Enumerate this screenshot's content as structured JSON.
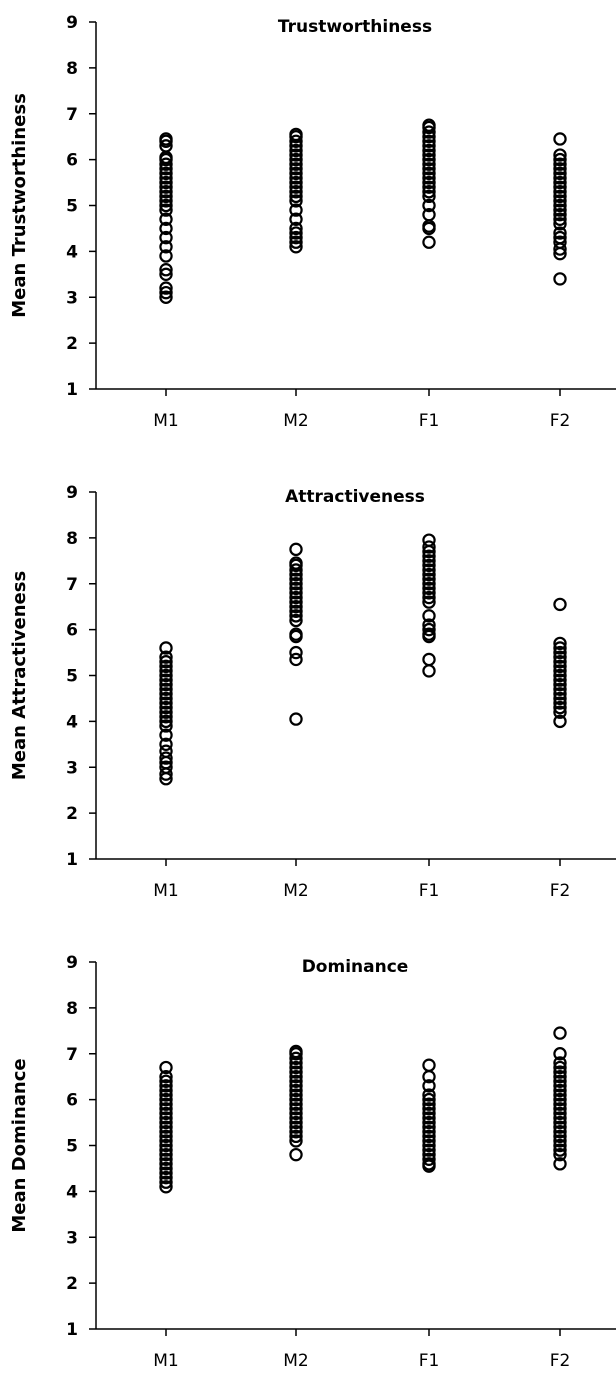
{
  "chart_data": [
    {
      "type": "scatter",
      "title": "Trustworthiness",
      "ylabel": "Mean Trustworthiness",
      "xlabel": "",
      "categories": [
        "M1",
        "M2",
        "F1",
        "F2"
      ],
      "ylim": [
        1,
        9
      ],
      "yticks": [
        "1",
        "2",
        "3",
        "4",
        "5",
        "6",
        "7",
        "8",
        "9"
      ],
      "grid": false,
      "series": [
        {
          "category": "M1",
          "values": [
            3.0,
            3.1,
            3.2,
            3.5,
            3.6,
            3.9,
            4.1,
            4.3,
            4.5,
            4.7,
            4.9,
            5.0,
            5.1,
            5.2,
            5.3,
            5.4,
            5.5,
            5.6,
            5.7,
            5.8,
            5.9,
            6.0,
            6.05,
            6.3,
            6.4,
            6.45
          ]
        },
        {
          "category": "M2",
          "values": [
            4.1,
            4.2,
            4.3,
            4.4,
            4.5,
            4.7,
            4.9,
            5.1,
            5.2,
            5.3,
            5.4,
            5.5,
            5.6,
            5.7,
            5.8,
            5.9,
            6.0,
            6.1,
            6.2,
            6.3,
            6.4,
            6.5,
            6.55
          ]
        },
        {
          "category": "F1",
          "values": [
            4.2,
            4.5,
            4.55,
            4.8,
            5.0,
            5.2,
            5.3,
            5.4,
            5.5,
            5.6,
            5.7,
            5.8,
            5.9,
            6.0,
            6.1,
            6.2,
            6.3,
            6.4,
            6.5,
            6.6,
            6.7,
            6.75
          ]
        },
        {
          "category": "F2",
          "values": [
            3.4,
            3.95,
            4.05,
            4.2,
            4.3,
            4.4,
            4.6,
            4.7,
            4.8,
            4.9,
            5.0,
            5.1,
            5.2,
            5.3,
            5.4,
            5.5,
            5.6,
            5.7,
            5.8,
            5.9,
            6.0,
            6.1,
            6.45
          ]
        }
      ]
    },
    {
      "type": "scatter",
      "title": "Attractiveness",
      "ylabel": "Mean Attractiveness",
      "xlabel": "",
      "categories": [
        "M1",
        "M2",
        "F1",
        "F2"
      ],
      "ylim": [
        1,
        9
      ],
      "yticks": [
        "1",
        "2",
        "3",
        "4",
        "5",
        "6",
        "7",
        "8",
        "9"
      ],
      "grid": false,
      "series": [
        {
          "category": "M1",
          "values": [
            2.75,
            2.85,
            3.0,
            3.1,
            3.2,
            3.35,
            3.5,
            3.7,
            3.9,
            4.0,
            4.1,
            4.2,
            4.3,
            4.4,
            4.5,
            4.6,
            4.7,
            4.8,
            4.9,
            5.0,
            5.1,
            5.2,
            5.3,
            5.4,
            5.6
          ]
        },
        {
          "category": "M2",
          "values": [
            4.05,
            5.35,
            5.5,
            5.85,
            5.9,
            6.2,
            6.3,
            6.4,
            6.5,
            6.6,
            6.7,
            6.8,
            6.9,
            7.0,
            7.1,
            7.2,
            7.3,
            7.4,
            7.45,
            7.75
          ]
        },
        {
          "category": "F1",
          "values": [
            5.1,
            5.35,
            5.85,
            5.9,
            6.0,
            6.1,
            6.3,
            6.6,
            6.7,
            6.8,
            6.9,
            7.0,
            7.1,
            7.2,
            7.3,
            7.4,
            7.5,
            7.6,
            7.7,
            7.8,
            7.95
          ]
        },
        {
          "category": "F2",
          "values": [
            4.0,
            4.2,
            4.3,
            4.4,
            4.5,
            4.6,
            4.7,
            4.8,
            4.9,
            5.0,
            5.1,
            5.2,
            5.3,
            5.4,
            5.5,
            5.6,
            5.7,
            6.55
          ]
        }
      ]
    },
    {
      "type": "scatter",
      "title": "Dominance",
      "ylabel": "Mean Dominance",
      "xlabel": "",
      "categories": [
        "M1",
        "M2",
        "F1",
        "F2"
      ],
      "ylim": [
        1,
        9
      ],
      "yticks": [
        "1",
        "2",
        "3",
        "4",
        "5",
        "6",
        "7",
        "8",
        "9"
      ],
      "grid": false,
      "series": [
        {
          "category": "M1",
          "values": [
            4.1,
            4.2,
            4.3,
            4.4,
            4.5,
            4.6,
            4.7,
            4.8,
            4.9,
            5.0,
            5.1,
            5.2,
            5.3,
            5.4,
            5.5,
            5.6,
            5.7,
            5.8,
            5.9,
            6.0,
            6.1,
            6.2,
            6.3,
            6.4,
            6.5,
            6.7
          ]
        },
        {
          "category": "M2",
          "values": [
            4.8,
            5.1,
            5.2,
            5.3,
            5.4,
            5.5,
            5.6,
            5.7,
            5.8,
            5.9,
            6.0,
            6.1,
            6.2,
            6.3,
            6.4,
            6.5,
            6.6,
            6.7,
            6.8,
            6.9,
            7.0,
            7.05
          ]
        },
        {
          "category": "F1",
          "values": [
            4.55,
            4.6,
            4.7,
            4.8,
            4.9,
            5.0,
            5.1,
            5.2,
            5.3,
            5.4,
            5.5,
            5.6,
            5.7,
            5.8,
            5.9,
            6.0,
            6.1,
            6.3,
            6.5,
            6.75
          ]
        },
        {
          "category": "F2",
          "values": [
            4.6,
            4.8,
            4.9,
            5.0,
            5.1,
            5.2,
            5.3,
            5.4,
            5.5,
            5.6,
            5.7,
            5.8,
            5.9,
            6.0,
            6.1,
            6.2,
            6.3,
            6.4,
            6.5,
            6.6,
            6.7,
            6.8,
            7.0,
            7.45
          ]
        }
      ]
    }
  ]
}
